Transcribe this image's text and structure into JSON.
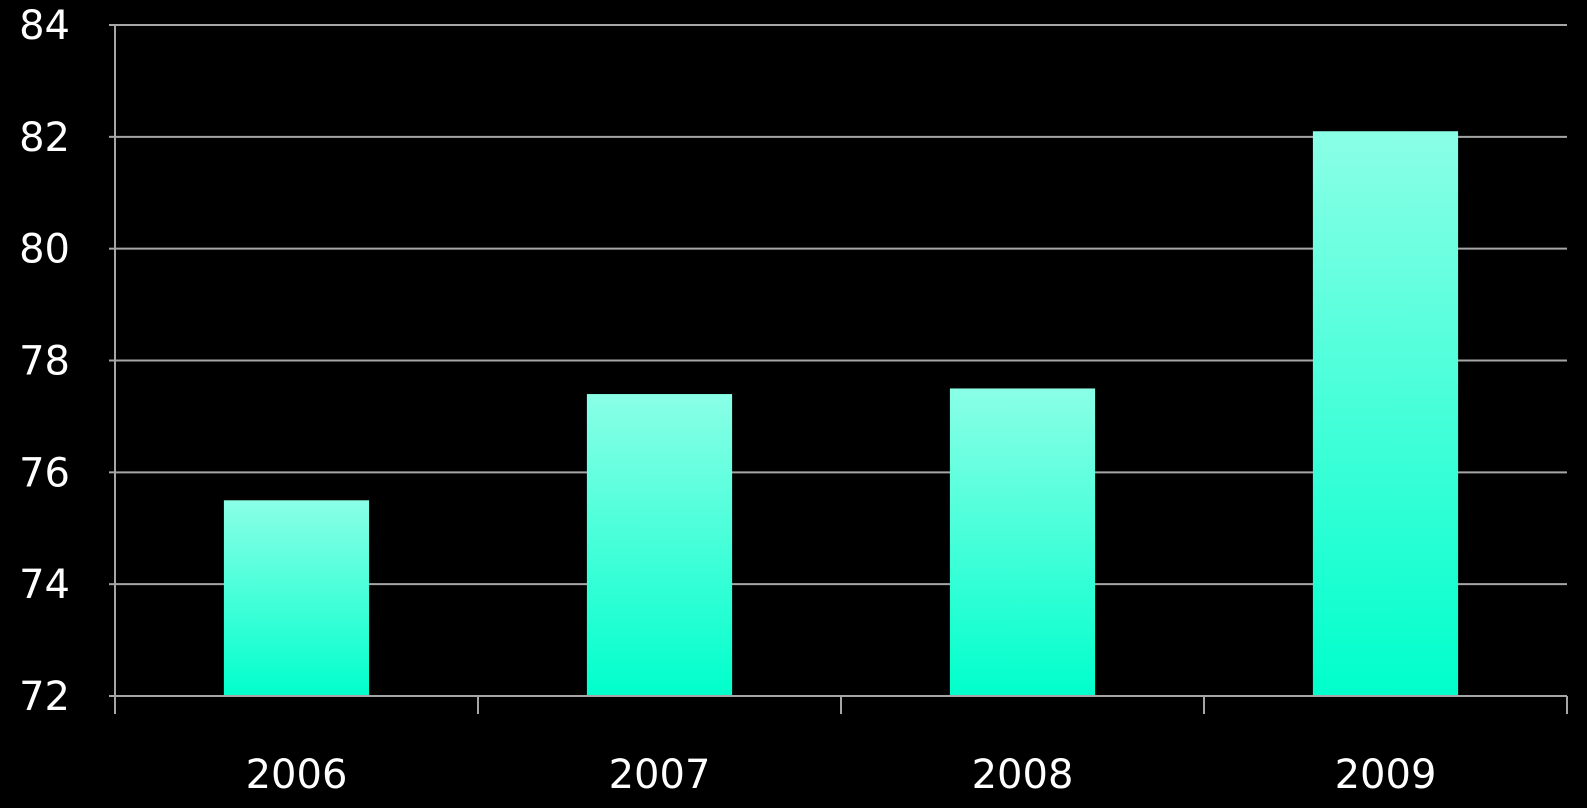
{
  "chart_data": {
    "type": "bar",
    "categories": [
      "2006",
      "2007",
      "2008",
      "2009"
    ],
    "values": [
      75.5,
      77.4,
      77.5,
      82.1
    ],
    "title": "",
    "xlabel": "",
    "ylabel": "",
    "ylim": [
      72,
      84
    ],
    "yticks": [
      "72",
      "74",
      "76",
      "78",
      "80",
      "82",
      "84"
    ],
    "grid": true,
    "legend": "none",
    "colors": {
      "background": "#000000",
      "bar_top": "#8affe6",
      "bar_bottom": "#00ffcc",
      "gridline": "#a6a6a6",
      "axis": "#a6a6a6",
      "text": "#ffffff"
    }
  }
}
